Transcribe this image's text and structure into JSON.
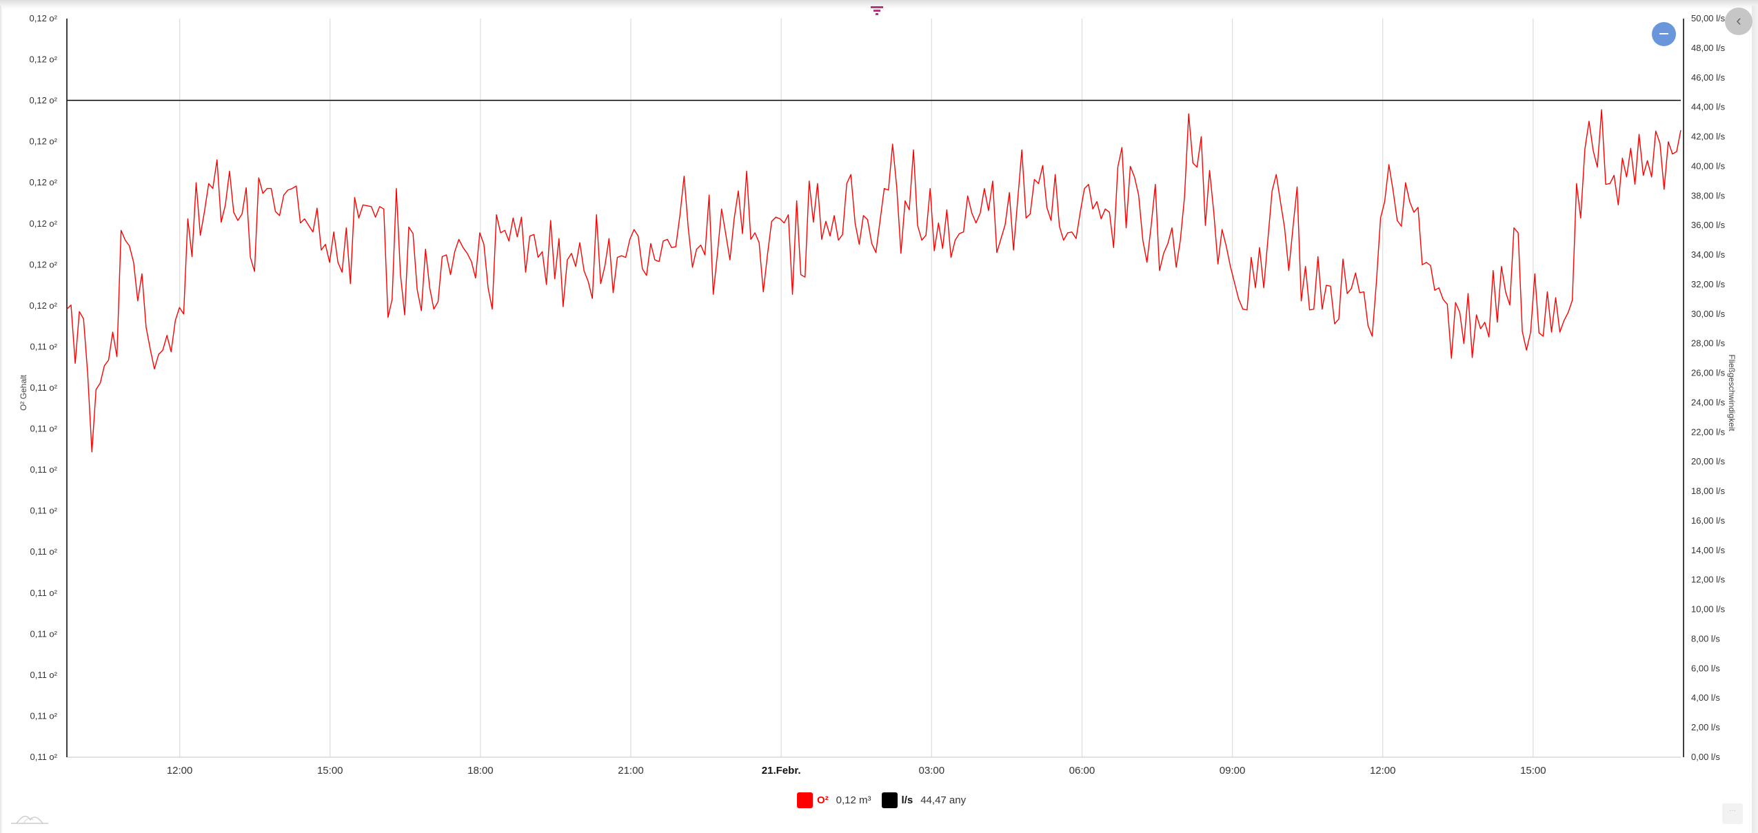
{
  "toolbar": {
    "filter_icon": "filter-icon",
    "zoom_reset_icon": "minus-icon",
    "collapse_icon": "chevron-left-icon",
    "collapse_label": "‹",
    "more_label": "···",
    "navigator_icon": "area-chart-icon"
  },
  "legend": [
    {
      "name": "O²",
      "value": "0,12 m³",
      "color": "#ff0000"
    },
    {
      "name": "l/s",
      "value": "44,47 any",
      "color": "#000000"
    }
  ],
  "chart_data": {
    "type": "line",
    "title": "",
    "grid": {
      "vertical": true,
      "horizontal": false
    },
    "legend_position": "bottom",
    "x_axis": {
      "tick_labels": [
        "12:00",
        "15:00",
        "18:00",
        "21:00",
        "21.Febr.",
        "03:00",
        "06:00",
        "09:00",
        "12:00",
        "15:00"
      ],
      "range": [
        "09:45",
        "18:00"
      ],
      "sampling": "5 min"
    },
    "y_left": {
      "label": "O² Gehalt",
      "ylim": [
        0.1096,
        0.1186
      ],
      "tick_labels": [
        "0,11 o²",
        "0,11 o²",
        "0,11 o²",
        "0,11 o²",
        "0,11 o²",
        "0,11 o²",
        "0,11 o²",
        "0,11 o²",
        "0,11 o²",
        "0,11 o²",
        "0,11 o²",
        "0,12 o²",
        "0,12 o²",
        "0,12 o²",
        "0,12 o²",
        "0,12 o²",
        "0,12 o²",
        "0,12 o²",
        "0,12 o²"
      ]
    },
    "y_right": {
      "label": "Fließgeschwindigkeit",
      "ylim": [
        0,
        50
      ],
      "tick_labels": [
        "0,00 l/s",
        "2,00 l/s",
        "4,00 l/s",
        "6,00 l/s",
        "8,00 l/s",
        "10,00 l/s",
        "12,00 l/s",
        "14,00 l/s",
        "16,00 l/s",
        "18,00 l/s",
        "20,00 l/s",
        "22,00 l/s",
        "24,00 l/s",
        "26,00 l/s",
        "28,00 l/s",
        "30,00 l/s",
        "32,00 l/s",
        "34,00 l/s",
        "36,00 l/s",
        "38,00 l/s",
        "40,00 l/s",
        "42,00 l/s",
        "44,00 l/s",
        "46,00 l/s",
        "48,00 l/s",
        "50,00 l/s"
      ]
    },
    "series": [
      {
        "name": "O²",
        "axis": "left",
        "color": "#ff0000",
        "values": [
          0.11506,
          0.11511,
          0.1144,
          0.11503,
          0.11494,
          0.11427,
          0.11332,
          0.11408,
          0.11416,
          0.11437,
          0.11444,
          0.11478,
          0.11448,
          0.11602,
          0.1159,
          0.11583,
          0.11563,
          0.11516,
          0.11549,
          0.11484,
          0.11457,
          0.11433,
          0.11451,
          0.11456,
          0.11474,
          0.11454,
          0.11492,
          0.11508,
          0.115,
          0.11616,
          0.1157,
          0.1166,
          0.11596,
          0.11625,
          0.11659,
          0.11653,
          0.11688,
          0.11612,
          0.11633,
          0.11674,
          0.11624,
          0.11614,
          0.11622,
          0.11654,
          0.11569,
          0.11552,
          0.11666,
          0.11647,
          0.11653,
          0.11653,
          0.11625,
          0.1162,
          0.11645,
          0.11651,
          0.11653,
          0.11656,
          0.11611,
          0.11616,
          0.11608,
          0.116,
          0.11629,
          0.11578,
          0.11585,
          0.11563,
          0.116,
          0.11563,
          0.11551,
          0.11605,
          0.11537,
          0.11642,
          0.11617,
          0.11633,
          0.11632,
          0.11631,
          0.11618,
          0.11631,
          0.11628,
          0.11496,
          0.11518,
          0.11653,
          0.11548,
          0.11499,
          0.11606,
          0.11598,
          0.1153,
          0.11504,
          0.11579,
          0.11532,
          0.11506,
          0.11515,
          0.1157,
          0.11572,
          0.11548,
          0.11576,
          0.11591,
          0.11581,
          0.11574,
          0.11564,
          0.11544,
          0.11599,
          0.11585,
          0.11532,
          0.11506,
          0.11621,
          0.11599,
          0.11602,
          0.11589,
          0.11617,
          0.11594,
          0.11618,
          0.11551,
          0.11595,
          0.11597,
          0.11569,
          0.11576,
          0.11536,
          0.11614,
          0.11543,
          0.11592,
          0.11509,
          0.11566,
          0.11574,
          0.11558,
          0.11587,
          0.11553,
          0.1154,
          0.11519,
          0.11621,
          0.11537,
          0.11558,
          0.11592,
          0.11526,
          0.11569,
          0.11571,
          0.11569,
          0.11591,
          0.11603,
          0.11595,
          0.11555,
          0.11547,
          0.11586,
          0.11566,
          0.11564,
          0.11589,
          0.11591,
          0.11581,
          0.11582,
          0.1162,
          0.11668,
          0.11605,
          0.11557,
          0.11579,
          0.11584,
          0.11572,
          0.11645,
          0.11524,
          0.11574,
          0.11628,
          0.11597,
          0.11566,
          0.11616,
          0.1165,
          0.11598,
          0.11674,
          0.11591,
          0.11599,
          0.11587,
          0.11527,
          0.11572,
          0.11613,
          0.11618,
          0.11616,
          0.11611,
          0.11621,
          0.11524,
          0.11638,
          0.11548,
          0.11545,
          0.11662,
          0.11612,
          0.11659,
          0.11591,
          0.11613,
          0.11595,
          0.1162,
          0.1159,
          0.11597,
          0.11659,
          0.1167,
          0.11611,
          0.11585,
          0.1162,
          0.11615,
          0.11586,
          0.11575,
          0.11614,
          0.11653,
          0.11651,
          0.11707,
          0.11654,
          0.11574,
          0.11638,
          0.11627,
          0.117,
          0.11608,
          0.1159,
          0.11596,
          0.11653,
          0.11577,
          0.11611,
          0.1158,
          0.11627,
          0.11569,
          0.1159,
          0.11598,
          0.116,
          0.11644,
          0.11623,
          0.11611,
          0.11623,
          0.11653,
          0.11626,
          0.11662,
          0.11575,
          0.11592,
          0.11609,
          0.11648,
          0.11578,
          0.11639,
          0.117,
          0.11617,
          0.11622,
          0.11664,
          0.11659,
          0.11681,
          0.1163,
          0.11614,
          0.1167,
          0.11607,
          0.1159,
          0.11599,
          0.116,
          0.11592,
          0.11624,
          0.11653,
          0.11658,
          0.11628,
          0.11637,
          0.11616,
          0.11628,
          0.11624,
          0.11581,
          0.11679,
          0.11703,
          0.11605,
          0.1168,
          0.11667,
          0.11645,
          0.1159,
          0.11563,
          0.11608,
          0.11658,
          0.11553,
          0.11574,
          0.11586,
          0.11605,
          0.11557,
          0.1159,
          0.11643,
          0.11744,
          0.11684,
          0.11679,
          0.11716,
          0.11608,
          0.11675,
          0.11625,
          0.11561,
          0.11603,
          0.11583,
          0.11558,
          0.11538,
          0.11518,
          0.11506,
          0.11505,
          0.11569,
          0.11532,
          0.11581,
          0.11532,
          0.11591,
          0.1165,
          0.1167,
          0.11637,
          0.11605,
          0.11553,
          0.11605,
          0.11655,
          0.11516,
          0.11558,
          0.11505,
          0.11506,
          0.1157,
          0.11506,
          0.11535,
          0.11534,
          0.11488,
          0.11494,
          0.11567,
          0.11525,
          0.11531,
          0.1155,
          0.11526,
          0.11527,
          0.11486,
          0.11473,
          0.11538,
          0.11617,
          0.11637,
          0.11682,
          0.11651,
          0.11614,
          0.11607,
          0.1166,
          0.11637,
          0.11624,
          0.1163,
          0.1156,
          0.11563,
          0.11559,
          0.11529,
          0.11532,
          0.11518,
          0.11512,
          0.11446,
          0.11514,
          0.11502,
          0.11464,
          0.11525,
          0.11447,
          0.11499,
          0.11482,
          0.1149,
          0.11472,
          0.11553,
          0.1149,
          0.11558,
          0.11527,
          0.11511,
          0.11605,
          0.11599,
          0.11479,
          0.11456,
          0.11478,
          0.11549,
          0.11477,
          0.11473,
          0.11527,
          0.11478,
          0.1152,
          0.11478,
          0.11492,
          0.11502,
          0.11517,
          0.11659,
          0.11617,
          0.11701,
          0.11735,
          0.11699,
          0.11679,
          0.11749,
          0.11658,
          0.11659,
          0.11669,
          0.11633,
          0.1169,
          0.11667,
          0.11702,
          0.11658,
          0.11719,
          0.11669,
          0.11687,
          0.11667,
          0.11723,
          0.11708,
          0.11652,
          0.1171,
          0.11695,
          0.11698,
          0.11724
        ]
      },
      {
        "name": "l/s",
        "axis": "right",
        "color": "#000000",
        "values": [
          44.47,
          44.47
        ]
      }
    ]
  }
}
